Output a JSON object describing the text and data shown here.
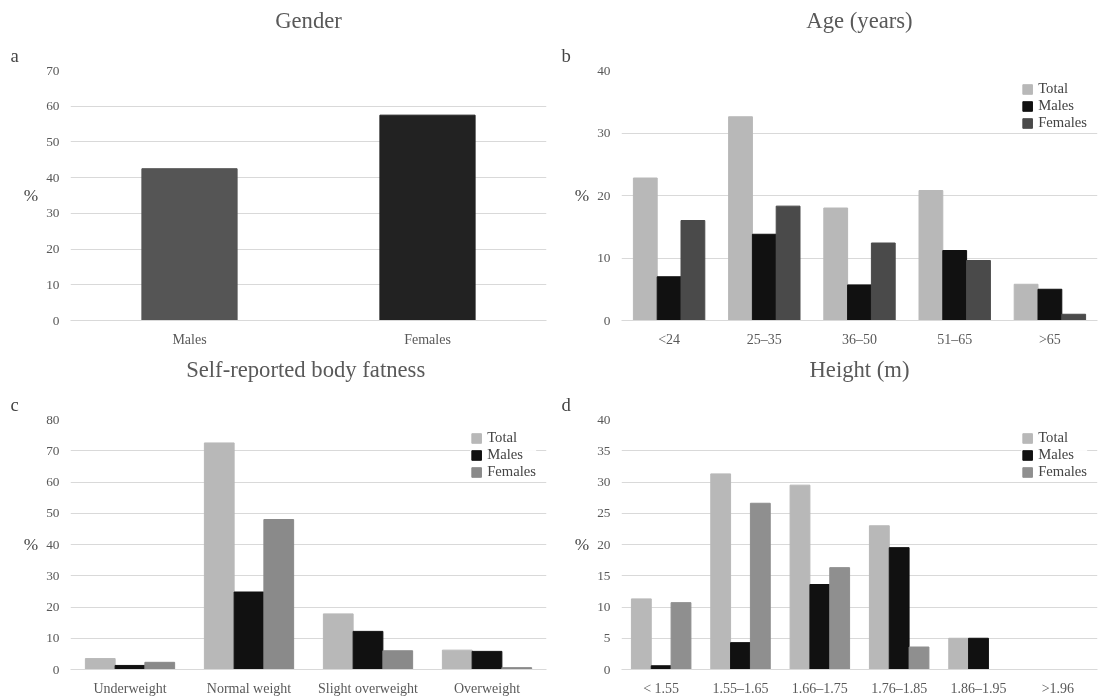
{
  "chart_data": [
    {
      "type": "bar",
      "title": "Gender",
      "ylabel": "%",
      "annotations": [
        "a"
      ],
      "categories": [
        "Males",
        "Females"
      ],
      "values": [
        42.5,
        57.5
      ],
      "colors": [
        "#555555",
        "#222222"
      ],
      "ylim": [
        0,
        70
      ],
      "yticks": [
        0,
        10,
        20,
        30,
        40,
        50,
        60,
        70
      ],
      "grid": "y",
      "legend": false
    },
    {
      "type": "bar",
      "title": "Age (years)",
      "ylabel": "%",
      "annotations": [
        "b"
      ],
      "categories": [
        "<24",
        "25–35",
        "36–50",
        "51–65",
        ">65"
      ],
      "series": [
        {
          "name": "Total",
          "color": "#b8b8b8",
          "values": [
            22.8,
            32.6,
            18,
            20.8,
            5.8
          ]
        },
        {
          "name": "Males",
          "color": "#111111",
          "values": [
            7,
            13.8,
            5.7,
            11.2,
            5
          ]
        },
        {
          "name": "Females",
          "color": "#4a4a4a",
          "values": [
            16,
            18.3,
            12.4,
            9.6,
            1
          ]
        }
      ],
      "ylim": [
        0,
        40
      ],
      "yticks": [
        0,
        10,
        20,
        30,
        40
      ],
      "grid": "y",
      "legend": "top right"
    },
    {
      "type": "bar",
      "title": "Self-reported  body fatness",
      "ylabel": "%",
      "annotations": [
        "c"
      ],
      "categories": [
        "Underweight",
        "Normal weight",
        "Slight overweight",
        "Overweight"
      ],
      "series": [
        {
          "name": "Total",
          "color": "#b8b8b8",
          "values": [
            3.5,
            72.5,
            17.8,
            6.2
          ]
        },
        {
          "name": "Males",
          "color": "#111111",
          "values": [
            1.3,
            24.8,
            12.2,
            5.8
          ]
        },
        {
          "name": "Females",
          "color": "#8a8a8a",
          "values": [
            2.3,
            48,
            6,
            0.6
          ]
        }
      ],
      "ylim": [
        0,
        80
      ],
      "yticks": [
        0,
        10,
        20,
        30,
        40,
        50,
        60,
        70,
        80
      ],
      "grid": "y",
      "legend": "top right"
    },
    {
      "type": "bar",
      "title": "Height (m)",
      "ylabel": "%",
      "annotations": [
        "d"
      ],
      "categories": [
        "< 1.55",
        "1.55–1.65",
        "1.66–1.75",
        "1.76–1.85",
        "1.86–1.95",
        ">1.96"
      ],
      "series": [
        {
          "name": "Total",
          "color": "#b8b8b8",
          "values": [
            11.3,
            31.3,
            29.5,
            23,
            5,
            0
          ]
        },
        {
          "name": "Males",
          "color": "#111111",
          "values": [
            0.6,
            4.3,
            13.6,
            19.5,
            5,
            0
          ]
        },
        {
          "name": "Females",
          "color": "#8f8f8f",
          "values": [
            10.7,
            26.6,
            16.3,
            3.6,
            0,
            0
          ]
        }
      ],
      "ylim": [
        0,
        40
      ],
      "yticks": [
        0,
        5,
        10,
        15,
        20,
        25,
        30,
        35,
        40
      ],
      "grid": "y",
      "legend": "top right"
    }
  ]
}
